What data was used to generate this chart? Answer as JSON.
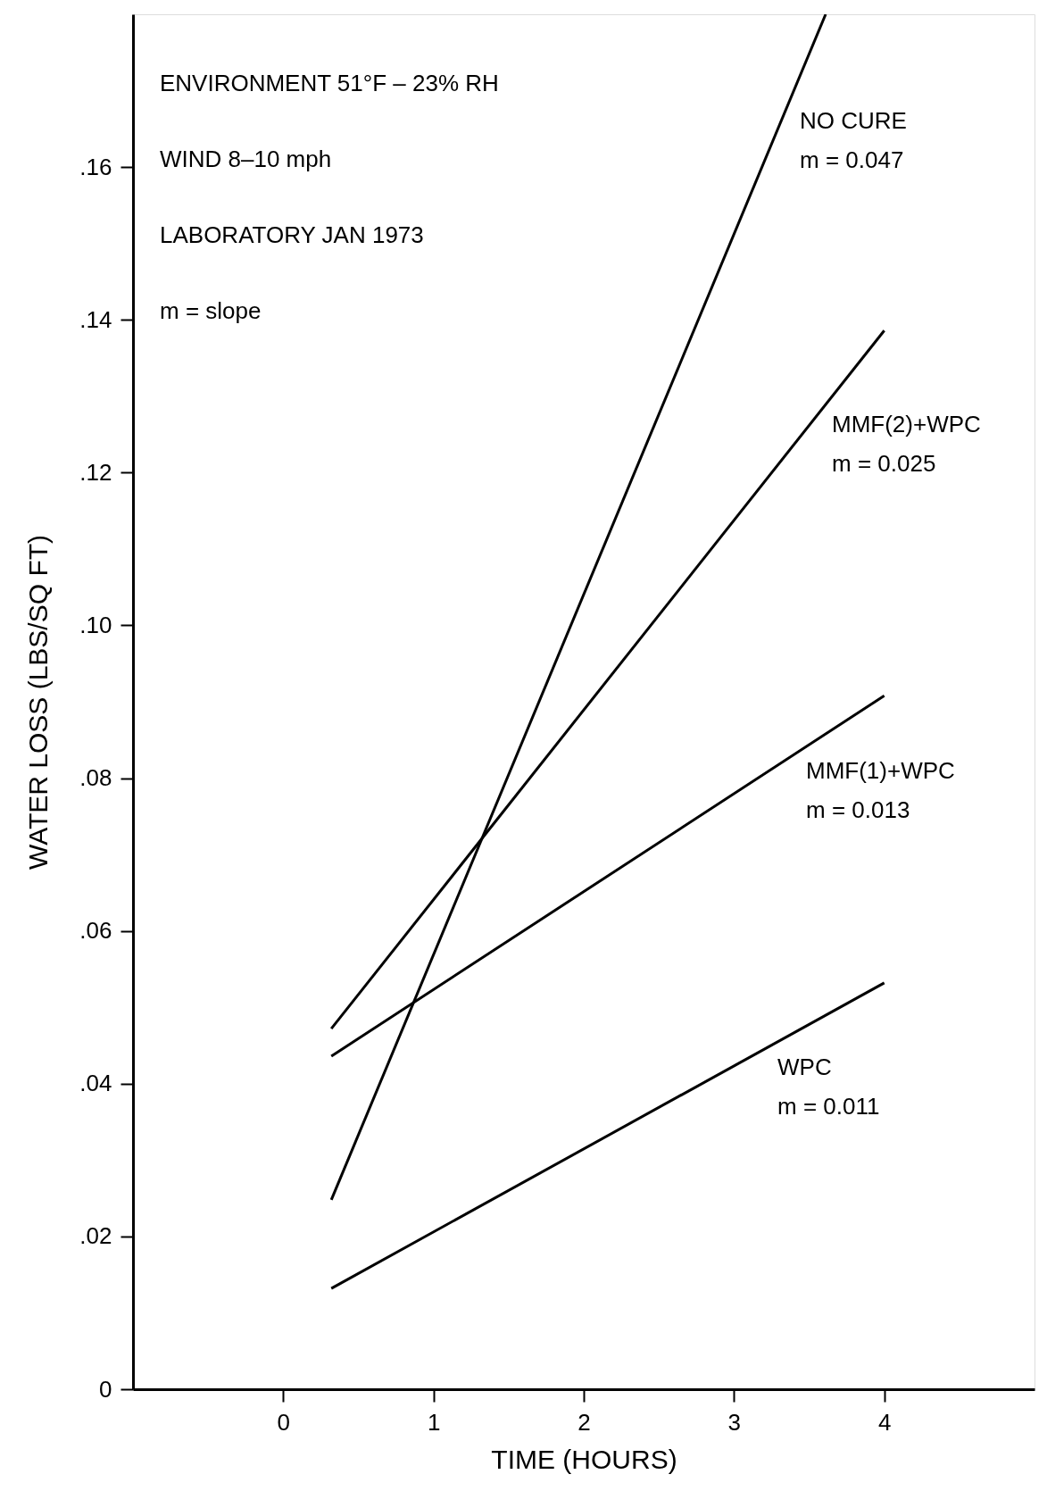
{
  "chart_data": {
    "type": "line",
    "xlabel": "TIME (HOURS)",
    "ylabel": "WATER LOSS (LBS/SQ FT)",
    "xlim": [
      -1,
      5
    ],
    "xticks": [
      0,
      1,
      2,
      3,
      4
    ],
    "ylim": [
      0,
      0.18
    ],
    "yticks": [
      0,
      {
        "value": 0.02,
        "label": ".02"
      },
      {
        "value": 0.04,
        "label": ".04"
      },
      {
        "value": 0.06,
        "label": ".06"
      },
      {
        "value": 0.08,
        "label": ".08"
      },
      {
        "value": 0.1,
        "label": ".10"
      },
      {
        "value": 0.12,
        "label": ".12"
      },
      {
        "value": 0.14,
        "label": ".14"
      },
      {
        "value": 0.16,
        "label": ".16"
      }
    ],
    "grid": false,
    "marker": "none",
    "line_style": "solid",
    "series": [
      {
        "name": "NO CURE",
        "color": "#000000",
        "x": [
          0.32,
          3.61
        ],
        "values": [
          0.0248,
          0.18
        ]
      },
      {
        "name": "MMF(2)+WPC",
        "color": "#000000",
        "x": [
          0.32,
          4
        ],
        "values": [
          0.0472,
          0.1386
        ]
      },
      {
        "name": "MMF(1)+WPC",
        "color": "#000000",
        "x": [
          0.32,
          4
        ],
        "values": [
          0.0436,
          0.0908
        ]
      },
      {
        "name": "WPC",
        "color": "#000000",
        "x": [
          0.32,
          4
        ],
        "values": [
          0.0132,
          0.0532
        ]
      }
    ],
    "annotations": [
      "ENVIRONMENT 51°F – 23% RH",
      "WIND 8–10 mph",
      "LABORATORY JAN 1973",
      "m = slope",
      "m = 0.047",
      "m = 0.025",
      "m = 0.013",
      "m = 0.011"
    ]
  }
}
